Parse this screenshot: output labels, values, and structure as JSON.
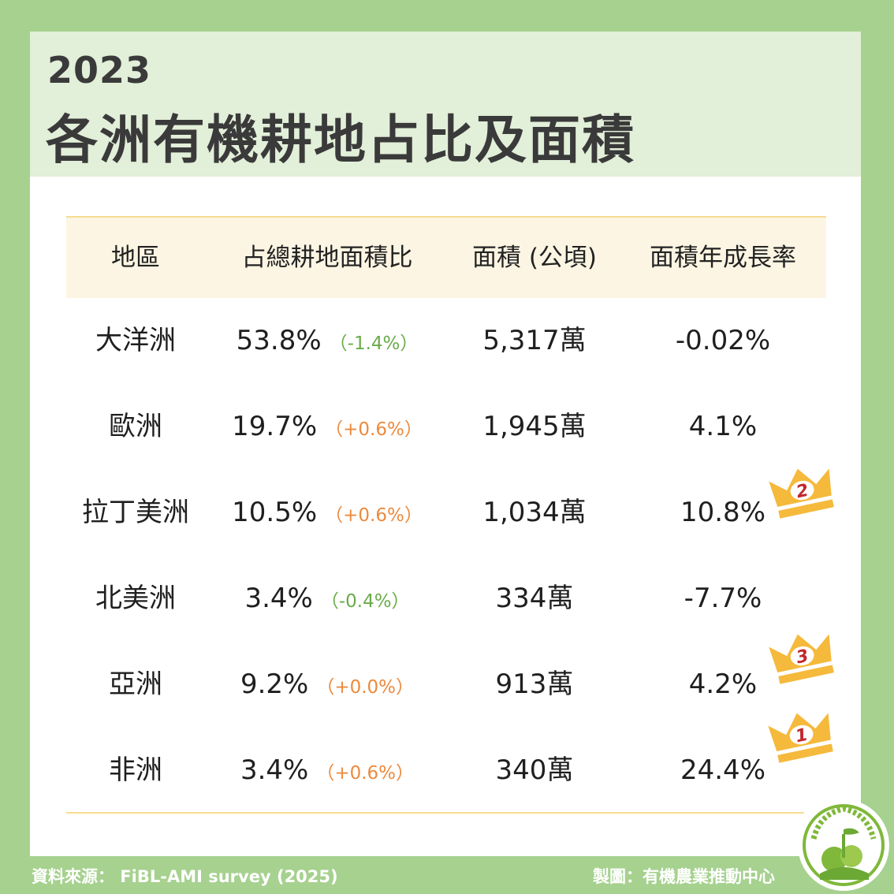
{
  "header": {
    "year": "2023",
    "title": "各洲有機耕地占比及面積"
  },
  "table": {
    "columns": [
      "地區",
      "占總耕地面積比",
      "面積 (公頃)",
      "面積年成長率"
    ],
    "rows": [
      {
        "region": "大洋洲",
        "share": "53.8%",
        "share_change": "（-1.4%）",
        "change_sign": "neg",
        "area": "5,317萬",
        "growth": "-0.02%"
      },
      {
        "region": "歐洲",
        "share": "19.7%",
        "share_change": "（+0.6%）",
        "change_sign": "pos",
        "area": "1,945萬",
        "growth": "4.1%"
      },
      {
        "region": "拉丁美洲",
        "share": "10.5%",
        "share_change": "（+0.6%）",
        "change_sign": "pos",
        "area": "1,034萬",
        "growth": "10.8%",
        "rank": "2"
      },
      {
        "region": "北美洲",
        "share": "3.4%",
        "share_change": "（-0.4%）",
        "change_sign": "neg",
        "area": "334萬",
        "growth": "-7.7%"
      },
      {
        "region": "亞洲",
        "share": "9.2%",
        "share_change": "（+0.0%）",
        "change_sign": "pos",
        "area": "913萬",
        "growth": "4.2%",
        "rank": "3"
      },
      {
        "region": "非洲",
        "share": "3.4%",
        "share_change": "（+0.6%）",
        "change_sign": "pos",
        "area": "340萬",
        "growth": "24.4%",
        "rank": "1"
      }
    ]
  },
  "footer": {
    "source": "資料來源： FiBL-AMI survey (2025)",
    "credit": "製圖：有機農業推動中心"
  },
  "icons": {
    "crown": "crown-icon",
    "logo": "organic-agriculture-center-logo"
  },
  "colors": {
    "background_green": "#a6d18f",
    "header_green": "#e2efd9",
    "table_header_cream": "#fcf5e3",
    "negative_change": "#6aab4a",
    "positive_change": "#ec8a3e",
    "crown_gold": "#f5b93c",
    "rank_red": "#c0282d"
  }
}
